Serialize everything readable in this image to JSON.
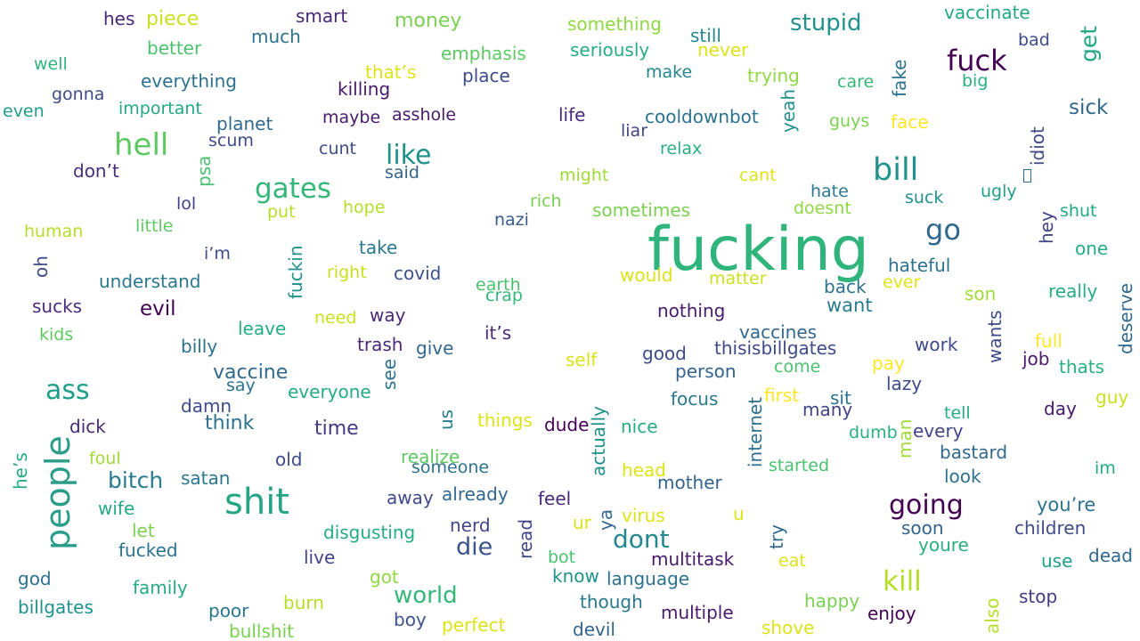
{
  "words": [
    {
      "text": "fucking",
      "color": "#2fb47c"
    },
    {
      "text": "shit",
      "color": "#25a584"
    },
    {
      "text": "people",
      "color": "#2a9c89"
    },
    {
      "text": "fuck",
      "color": "#440154"
    },
    {
      "text": "bill",
      "color": "#21918c"
    },
    {
      "text": "hell",
      "color": "#5ec962"
    },
    {
      "text": "gates",
      "color": "#35b779"
    },
    {
      "text": "kill",
      "color": "#b5de2b"
    },
    {
      "text": "going",
      "color": "#440154"
    },
    {
      "text": "like",
      "color": "#21918c"
    },
    {
      "text": "go",
      "color": "#31688e"
    },
    {
      "text": "ass",
      "color": "#1f9e89"
    },
    {
      "text": "dont",
      "color": "#23888e"
    },
    {
      "text": "world",
      "color": "#35b779"
    },
    {
      "text": "die",
      "color": "#3b528b"
    },
    {
      "text": "stupid",
      "color": "#21918c"
    },
    {
      "text": "bitch",
      "color": "#287c8e"
    },
    {
      "text": "get",
      "color": "#22a884"
    },
    {
      "text": "money",
      "color": "#7ad151"
    },
    {
      "text": "evil",
      "color": "#440154"
    },
    {
      "text": "vaccine",
      "color": "#31688e"
    },
    {
      "text": "time",
      "color": "#443983"
    },
    {
      "text": "sick",
      "color": "#31688e"
    },
    {
      "text": "piece",
      "color": "#c8e020"
    },
    {
      "text": "hes",
      "color": "#482878"
    },
    {
      "text": "smart",
      "color": "#482878"
    },
    {
      "text": "something",
      "color": "#8fd744"
    },
    {
      "text": "vaccinate",
      "color": "#22a884"
    },
    {
      "text": "better",
      "color": "#4ac16d"
    },
    {
      "text": "much",
      "color": "#2c728e"
    },
    {
      "text": "emphasis",
      "color": "#5ec962"
    },
    {
      "text": "seriously",
      "color": "#25ac82"
    },
    {
      "text": "still",
      "color": "#23888e"
    },
    {
      "text": "never",
      "color": "#dde318"
    },
    {
      "text": "bad",
      "color": "#3e4a89"
    },
    {
      "text": "well",
      "color": "#2fb47c"
    },
    {
      "text": "that’s",
      "color": "#dde318"
    },
    {
      "text": "place",
      "color": "#3e4a89"
    },
    {
      "text": "make",
      "color": "#23888e"
    },
    {
      "text": "trying",
      "color": "#8fd744"
    },
    {
      "text": "care",
      "color": "#35b779"
    },
    {
      "text": "big",
      "color": "#2ab07f"
    },
    {
      "text": "everything",
      "color": "#2c728e"
    },
    {
      "text": "killing",
      "color": "#481a6c"
    },
    {
      "text": "gonna",
      "color": "#3e4a89"
    },
    {
      "text": "even",
      "color": "#1f9e89"
    },
    {
      "text": "important",
      "color": "#22a884"
    },
    {
      "text": "asshole",
      "color": "#481a6c"
    },
    {
      "text": "life",
      "color": "#482878"
    },
    {
      "text": "cooldownbot",
      "color": "#2c728e"
    },
    {
      "text": "planet",
      "color": "#31688e"
    },
    {
      "text": "maybe",
      "color": "#481a6c"
    },
    {
      "text": "liar",
      "color": "#414487"
    },
    {
      "text": "guys",
      "color": "#7ad151"
    },
    {
      "text": "face",
      "color": "#fde725"
    },
    {
      "text": "scum",
      "color": "#3e4a89"
    },
    {
      "text": "cunt",
      "color": "#3e4a89"
    },
    {
      "text": "relax",
      "color": "#2ab07f"
    },
    {
      "text": "don’t",
      "color": "#472d7b"
    },
    {
      "text": "said",
      "color": "#33638d"
    },
    {
      "text": "might",
      "color": "#a0da39"
    },
    {
      "text": "cant",
      "color": "#dde318"
    },
    {
      "text": "hate",
      "color": "#2a788e"
    },
    {
      "text": "suck",
      "color": "#21918c"
    },
    {
      "text": "ugly",
      "color": "#1f9e89"
    },
    {
      "text": "rich",
      "color": "#7ad151"
    },
    {
      "text": "doesnt",
      "color": "#8fd744"
    },
    {
      "text": "shut",
      "color": "#22a884"
    },
    {
      "text": "sometimes",
      "color": "#7ad151"
    },
    {
      "text": "lol",
      "color": "#404387"
    },
    {
      "text": "put",
      "color": "#b5de2b"
    },
    {
      "text": "hope",
      "color": "#b5de2b"
    },
    {
      "text": "nazi",
      "color": "#365c8d"
    },
    {
      "text": "human",
      "color": "#b5de2b"
    },
    {
      "text": "little",
      "color": "#5ec962"
    },
    {
      "text": "i’m",
      "color": "#3e4a89"
    },
    {
      "text": "take",
      "color": "#2a788e"
    },
    {
      "text": "one",
      "color": "#25ac82"
    },
    {
      "text": "hateful",
      "color": "#2c728e"
    },
    {
      "text": "right",
      "color": "#c8e020"
    },
    {
      "text": "covid",
      "color": "#3b528b"
    },
    {
      "text": "earth",
      "color": "#4ac16d"
    },
    {
      "text": "would",
      "color": "#dde318"
    },
    {
      "text": "matter",
      "color": "#c8e020"
    },
    {
      "text": "back",
      "color": "#2c728e"
    },
    {
      "text": "ever",
      "color": "#dde318"
    },
    {
      "text": "really",
      "color": "#25ac82"
    },
    {
      "text": "son",
      "color": "#a0da39"
    },
    {
      "text": "understand",
      "color": "#2a788e"
    },
    {
      "text": "crap",
      "color": "#35b779"
    },
    {
      "text": "sucks",
      "color": "#472d7b"
    },
    {
      "text": "want",
      "color": "#287c8e"
    },
    {
      "text": "nothing",
      "color": "#481a6c"
    },
    {
      "text": "need",
      "color": "#c8e020"
    },
    {
      "text": "way",
      "color": "#482878"
    },
    {
      "text": "kids",
      "color": "#5ec962"
    },
    {
      "text": "leave",
      "color": "#25ac82"
    },
    {
      "text": "vaccines",
      "color": "#31688e"
    },
    {
      "text": "it’s",
      "color": "#482878"
    },
    {
      "text": "trash",
      "color": "#482878"
    },
    {
      "text": "billy",
      "color": "#2c728e"
    },
    {
      "text": "give",
      "color": "#31688e"
    },
    {
      "text": "thisisbillgates",
      "color": "#3e4a89"
    },
    {
      "text": "good",
      "color": "#3e4a89"
    },
    {
      "text": "work",
      "color": "#3e4a89"
    },
    {
      "text": "full",
      "color": "#fde725"
    },
    {
      "text": "job",
      "color": "#481a6c"
    },
    {
      "text": "self",
      "color": "#dde318"
    },
    {
      "text": "pay",
      "color": "#fde725"
    },
    {
      "text": "person",
      "color": "#33638d"
    },
    {
      "text": "thats",
      "color": "#2ab07f"
    },
    {
      "text": "come",
      "color": "#4ac16d"
    },
    {
      "text": "say",
      "color": "#2c728e"
    },
    {
      "text": "everyone",
      "color": "#25ac82"
    },
    {
      "text": "lazy",
      "color": "#3e4a89"
    },
    {
      "text": "damn",
      "color": "#3e4a89"
    },
    {
      "text": "focus",
      "color": "#2a788e"
    },
    {
      "text": "first",
      "color": "#fde725"
    },
    {
      "text": "sit",
      "color": "#2c728e"
    },
    {
      "text": "guy",
      "color": "#c8e020"
    },
    {
      "text": "many",
      "color": "#414487"
    },
    {
      "text": "think",
      "color": "#2c728e"
    },
    {
      "text": "day",
      "color": "#481a6c"
    },
    {
      "text": "tell",
      "color": "#25ac82"
    },
    {
      "text": "things",
      "color": "#dde318"
    },
    {
      "text": "dude",
      "color": "#440154"
    },
    {
      "text": "nice",
      "color": "#25ac82"
    },
    {
      "text": "dick",
      "color": "#482878"
    },
    {
      "text": "every",
      "color": "#414487"
    },
    {
      "text": "dumb",
      "color": "#2ab07f"
    },
    {
      "text": "bastard",
      "color": "#31688e"
    },
    {
      "text": "foul",
      "color": "#a0da39"
    },
    {
      "text": "old",
      "color": "#3e4a89"
    },
    {
      "text": "realize",
      "color": "#5ec962"
    },
    {
      "text": "im",
      "color": "#22a884"
    },
    {
      "text": "satan",
      "color": "#2a788e"
    },
    {
      "text": "someone",
      "color": "#2c728e"
    },
    {
      "text": "head",
      "color": "#dde318"
    },
    {
      "text": "started",
      "color": "#4ac16d"
    },
    {
      "text": "look",
      "color": "#2c728e"
    },
    {
      "text": "mother",
      "color": "#33638d"
    },
    {
      "text": "wife",
      "color": "#22a884"
    },
    {
      "text": "already",
      "color": "#31688e"
    },
    {
      "text": "away",
      "color": "#3e4a89"
    },
    {
      "text": "feel",
      "color": "#482878"
    },
    {
      "text": "you’re",
      "color": "#2c728e"
    },
    {
      "text": "virus",
      "color": "#dde318"
    },
    {
      "text": "u",
      "color": "#dde318"
    },
    {
      "text": "let",
      "color": "#7ad151"
    },
    {
      "text": "nerd",
      "color": "#414487"
    },
    {
      "text": "ur",
      "color": "#dde318"
    },
    {
      "text": "soon",
      "color": "#33638d"
    },
    {
      "text": "children",
      "color": "#3e4a89"
    },
    {
      "text": "disgusting",
      "color": "#25ac82"
    },
    {
      "text": "youre",
      "color": "#2ab07f"
    },
    {
      "text": "fucked",
      "color": "#2c728e"
    },
    {
      "text": "dead",
      "color": "#31688e"
    },
    {
      "text": "bot",
      "color": "#4ac16d"
    },
    {
      "text": "live",
      "color": "#404387"
    },
    {
      "text": "multitask",
      "color": "#481a6c"
    },
    {
      "text": "use",
      "color": "#1f9e89"
    },
    {
      "text": "eat",
      "color": "#dde318"
    },
    {
      "text": "god",
      "color": "#2c728e"
    },
    {
      "text": "got",
      "color": "#8fd744"
    },
    {
      "text": "know",
      "color": "#21918c"
    },
    {
      "text": "language",
      "color": "#2c728e"
    },
    {
      "text": "family",
      "color": "#25ac82"
    },
    {
      "text": "stop",
      "color": "#443983"
    },
    {
      "text": "billgates",
      "color": "#21918c"
    },
    {
      "text": "burn",
      "color": "#b5de2b"
    },
    {
      "text": "though",
      "color": "#2a788e"
    },
    {
      "text": "happy",
      "color": "#7ad151"
    },
    {
      "text": "poor",
      "color": "#2a788e"
    },
    {
      "text": "boy",
      "color": "#3b528b"
    },
    {
      "text": "multiple",
      "color": "#481a6c"
    },
    {
      "text": "enjoy",
      "color": "#440154"
    },
    {
      "text": "perfect",
      "color": "#dde318"
    },
    {
      "text": "bullshit",
      "color": "#7ad151"
    },
    {
      "text": "devil",
      "color": "#33638d"
    },
    {
      "text": "shove",
      "color": "#dde318"
    },
    {
      "text": "fake",
      "color": "#2c728e"
    },
    {
      "text": "yeah",
      "color": "#21918c"
    },
    {
      "text": "idiot",
      "color": "#3e4a89"
    },
    {
      "text": "hey",
      "color": "#404387"
    },
    {
      "text": "deserve",
      "color": "#31688e"
    },
    {
      "text": "wants",
      "color": "#3e4a89"
    },
    {
      "text": "psa",
      "color": "#4ac16d"
    },
    {
      "text": "oh",
      "color": "#3e4a89"
    },
    {
      "text": "fuckin",
      "color": "#21918c"
    },
    {
      "text": "see",
      "color": "#2c728e"
    },
    {
      "text": "us",
      "color": "#287c8e"
    },
    {
      "text": "actually",
      "color": "#21918c"
    },
    {
      "text": "internet",
      "color": "#2c728e"
    },
    {
      "text": "man",
      "color": "#a0da39"
    },
    {
      "text": "he’s",
      "color": "#25ac82"
    },
    {
      "text": "read",
      "color": "#404387"
    },
    {
      "text": "ya",
      "color": "#31688e"
    },
    {
      "text": "try",
      "color": "#31688e"
    },
    {
      "text": "also",
      "color": "#b5de2b"
    }
  ]
}
